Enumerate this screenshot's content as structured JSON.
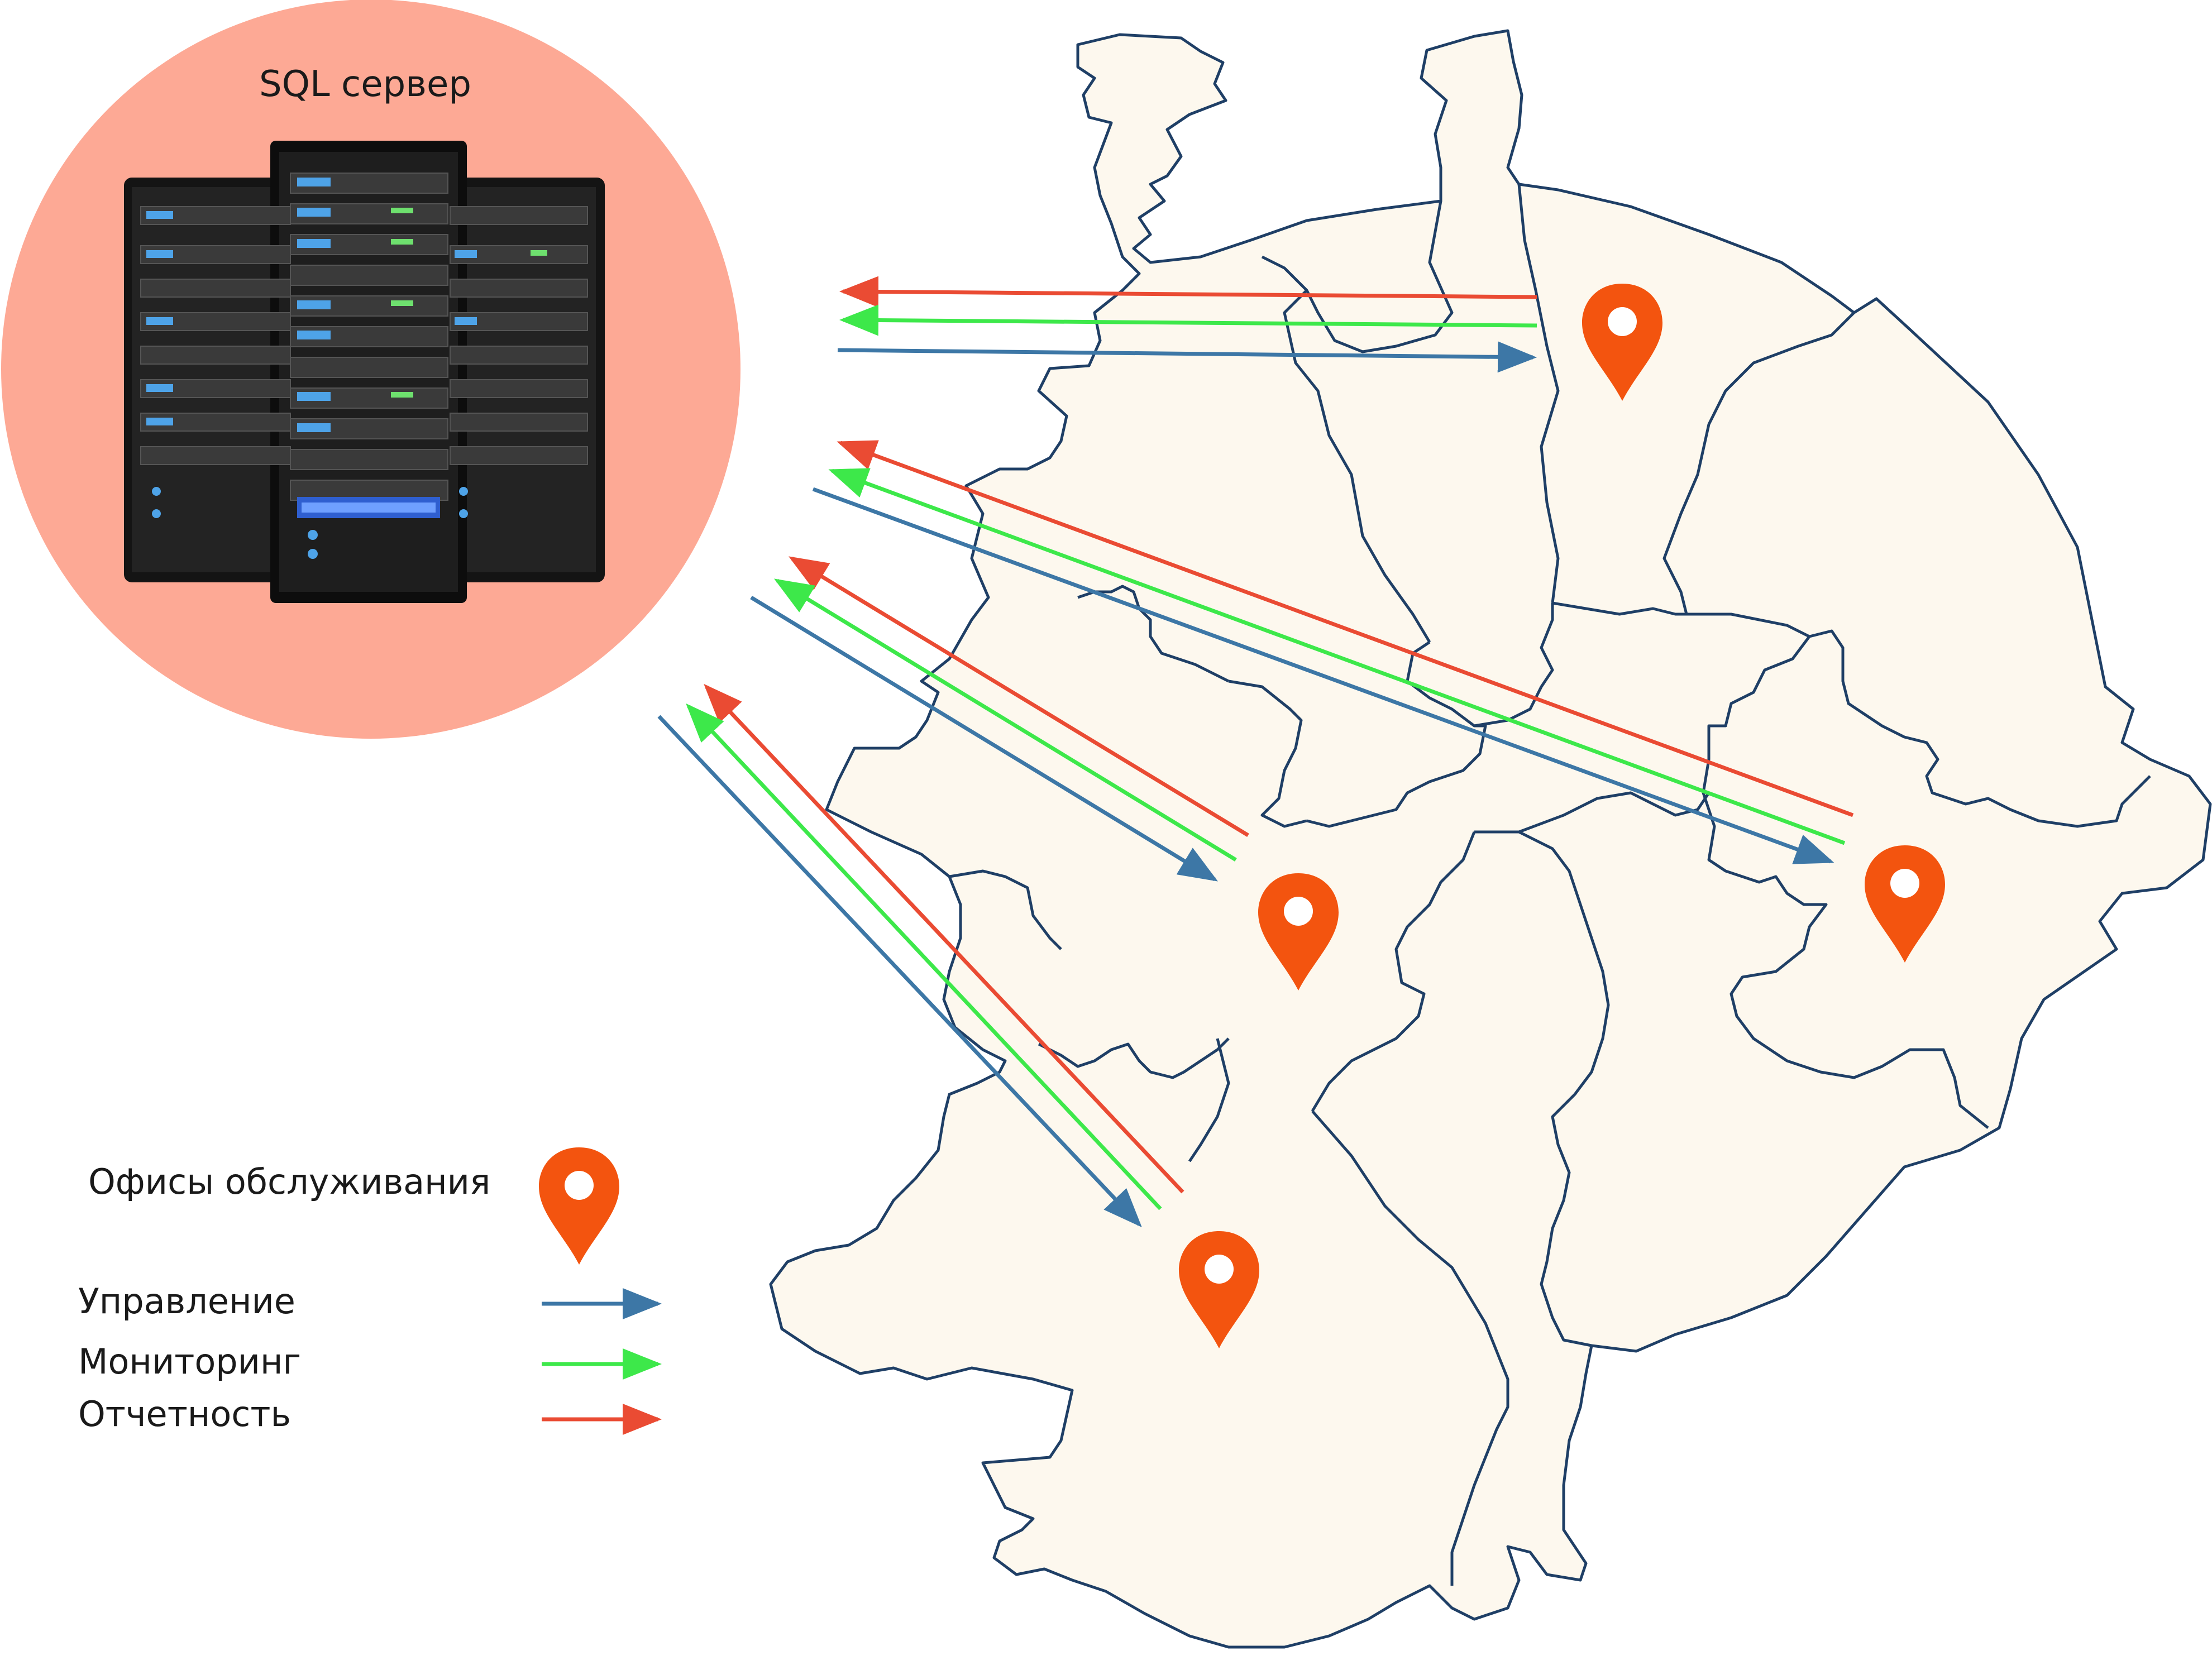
{
  "server": {
    "title": "SQL сервер",
    "icon": "server-rack-icon"
  },
  "legend": {
    "offices_label": "Офисы обслуживания",
    "offices_icon": "location-pin-icon",
    "items": [
      {
        "label": "Управление",
        "color": "#3d77a6"
      },
      {
        "label": "Мониторинг",
        "color": "#3de84a"
      },
      {
        "label": "Отчетность",
        "color": "#ea4b33"
      }
    ]
  },
  "colors": {
    "server_circle": "#fda995",
    "map_fill": "#fdf8ee",
    "map_border": "#1f3f66",
    "pin": "#f3540f",
    "management": "#3d77a6",
    "monitoring": "#3de84a",
    "reporting": "#ea4b33"
  },
  "map": {
    "offices_count": 4
  }
}
